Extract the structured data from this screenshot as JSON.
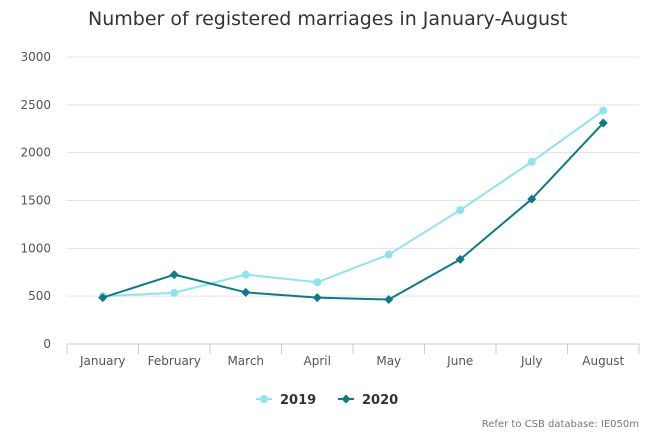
{
  "chart_data": {
    "type": "line",
    "title": "Number of registered marriages in January-August",
    "xlabel": "",
    "ylabel": "",
    "categories": [
      "January",
      "February",
      "March",
      "April",
      "May",
      "June",
      "July",
      "August"
    ],
    "ylim": [
      0,
      3000
    ],
    "yticks": [
      0,
      500,
      1000,
      1500,
      2000,
      2500,
      3000
    ],
    "grid": true,
    "legend_position": "bottom-center",
    "series": [
      {
        "name": "2019",
        "color": "#8fe3ee",
        "marker": "circle",
        "values": [
          500,
          535,
          725,
          645,
          935,
          1400,
          1905,
          2440
        ]
      },
      {
        "name": "2020",
        "color": "#0d7a8a",
        "marker": "diamond",
        "values": [
          485,
          725,
          540,
          485,
          465,
          885,
          1515,
          2310
        ]
      }
    ]
  },
  "credit": "Refer to CSB database: IE050m"
}
